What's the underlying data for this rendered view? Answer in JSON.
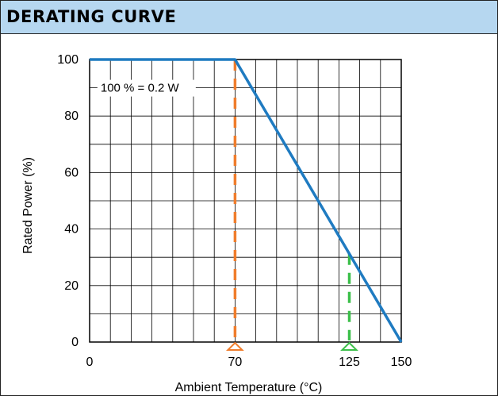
{
  "header": {
    "title": "DERATING CURVE"
  },
  "chart_data": {
    "type": "line",
    "title": "",
    "xlabel": "Ambient Temperature (°C)",
    "ylabel": "Rated Power (%)",
    "xlim": [
      0,
      150
    ],
    "ylim": [
      0,
      100
    ],
    "x_tick_labels": [
      {
        "value": 0,
        "label": "0"
      },
      {
        "value": 70,
        "label": "70"
      },
      {
        "value": 125,
        "label": "125"
      },
      {
        "value": 150,
        "label": "150"
      }
    ],
    "y_ticks": [
      0,
      20,
      40,
      60,
      80,
      100
    ],
    "grid": true,
    "series": [
      {
        "color": "#1f7bc1",
        "x": [
          0,
          70,
          150
        ],
        "y": [
          100,
          100,
          0
        ]
      }
    ],
    "annotations": [
      {
        "text": "100 % = 0.2 W",
        "x": 3,
        "y": 90
      }
    ],
    "markers": [
      {
        "x": 70,
        "y_top": 100,
        "color": "#f07d2c",
        "style": "dashed"
      },
      {
        "x": 125,
        "y_top": 31.25,
        "color": "#3cbf4a",
        "style": "dashed"
      }
    ]
  }
}
